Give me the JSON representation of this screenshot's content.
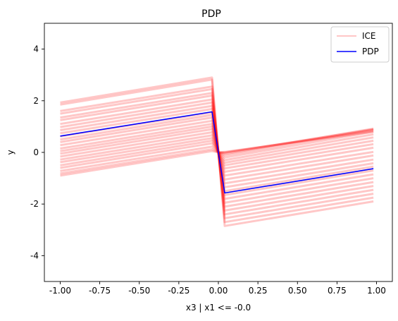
{
  "chart_data": {
    "type": "line",
    "title": "PDP",
    "xlabel": "x3 | x1 <= -0.0",
    "ylabel": "y",
    "xlim": [
      -1.1,
      1.1
    ],
    "ylim": [
      -5,
      5
    ],
    "xticks": [
      "-1.00",
      "-0.75",
      "-0.50",
      "-0.25",
      "0.00",
      "0.25",
      "0.50",
      "0.75",
      "1.00"
    ],
    "xtick_values": [
      -1.0,
      -0.75,
      -0.5,
      -0.25,
      0.0,
      0.25,
      0.5,
      0.75,
      1.0
    ],
    "yticks": [
      "-4",
      "-2",
      "0",
      "2",
      "4"
    ],
    "ytick_values": [
      -4,
      -2,
      0,
      2,
      4
    ],
    "grid": false,
    "legend_position": "top-right",
    "x_knots": [
      -1.0,
      -0.04,
      0.0,
      0.04,
      0.98
    ],
    "ice_offsets_left": [
      1.93,
      1.85,
      1.6,
      1.5,
      1.35,
      1.25,
      1.1,
      0.98,
      0.86,
      0.74,
      0.62,
      0.5,
      0.4,
      0.28,
      0.15,
      0.05,
      -0.05,
      -0.16,
      -0.28,
      -0.38,
      -0.5,
      -0.6,
      -0.72,
      -0.82,
      -0.9
    ],
    "series": [
      {
        "name": "ICE",
        "color": "#ff0000",
        "style": "translucent-lines",
        "lines": [
          [
            1.93,
            2.9,
            0.0,
            -2.85,
            -1.9
          ],
          [
            1.85,
            2.82,
            0.0,
            -2.7,
            -1.75
          ],
          [
            1.6,
            2.55,
            0.0,
            -2.55,
            -1.6
          ],
          [
            1.5,
            2.45,
            0.0,
            -2.4,
            -1.45
          ],
          [
            1.35,
            2.3,
            0.0,
            -2.25,
            -1.3
          ],
          [
            1.25,
            2.2,
            0.0,
            -2.1,
            -1.15
          ],
          [
            1.1,
            2.05,
            0.0,
            -1.95,
            -1.0
          ],
          [
            0.98,
            1.93,
            0.0,
            -1.8,
            -0.85
          ],
          [
            0.86,
            1.8,
            0.0,
            -1.65,
            -0.7
          ],
          [
            0.74,
            1.68,
            0.0,
            -1.5,
            -0.55
          ],
          [
            0.62,
            1.55,
            0.0,
            -1.35,
            -0.42
          ],
          [
            0.5,
            1.45,
            0.0,
            -1.2,
            -0.28
          ],
          [
            0.4,
            1.35,
            0.0,
            -1.05,
            -0.12
          ],
          [
            0.28,
            1.22,
            0.0,
            -0.9,
            0.02
          ],
          [
            0.15,
            1.1,
            0.0,
            -0.75,
            0.18
          ],
          [
            0.05,
            1.0,
            0.0,
            -0.62,
            0.32
          ],
          [
            -0.05,
            0.9,
            0.0,
            -0.5,
            0.45
          ],
          [
            -0.16,
            0.78,
            0.0,
            -0.4,
            0.58
          ],
          [
            -0.28,
            0.66,
            0.0,
            -0.3,
            0.7
          ],
          [
            -0.38,
            0.55,
            0.0,
            -0.2,
            0.8
          ],
          [
            -0.5,
            0.45,
            0.0,
            -0.12,
            0.88
          ],
          [
            -0.6,
            0.35,
            0.0,
            -0.06,
            0.92
          ],
          [
            -0.72,
            0.22,
            0.0,
            -0.02,
            0.9
          ],
          [
            -0.82,
            0.12,
            0.0,
            0.0,
            0.85
          ],
          [
            -0.9,
            0.05,
            0.0,
            0.02,
            0.8
          ]
        ]
      },
      {
        "name": "PDP",
        "color": "#0000ff",
        "x": [
          -1.0,
          -0.04,
          0.0,
          0.04,
          0.98
        ],
        "y": [
          0.63,
          1.57,
          0.0,
          -1.57,
          -0.63
        ]
      }
    ],
    "legend": [
      {
        "label": "ICE",
        "color": "#ffb3b3"
      },
      {
        "label": "PDP",
        "color": "#0000ff"
      }
    ]
  }
}
